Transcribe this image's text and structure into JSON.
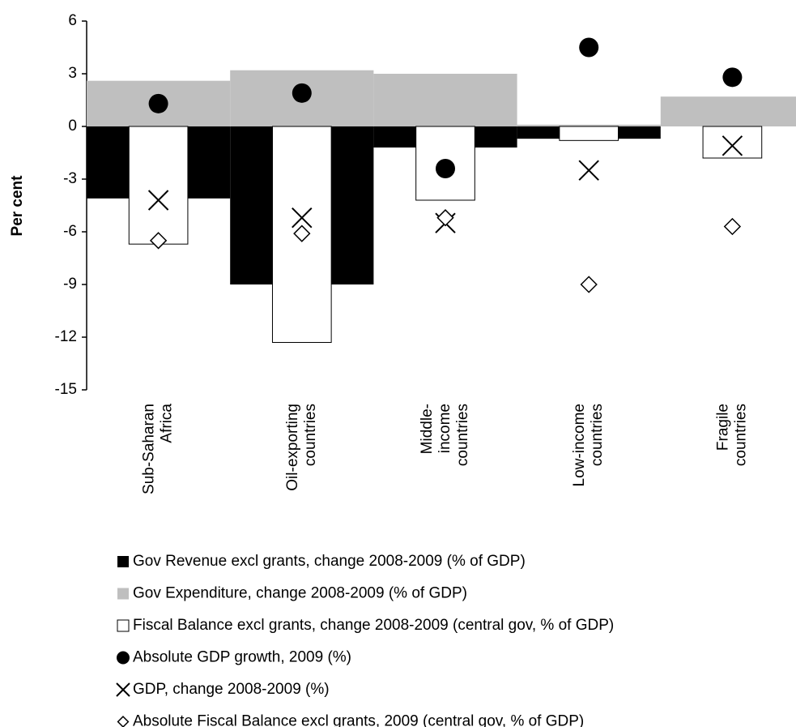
{
  "chart_data": {
    "type": "bar",
    "ylabel": "Per cent",
    "categories": [
      [
        "Sub-Saharan",
        "Africa"
      ],
      [
        "Oil-exporting",
        "countries"
      ],
      [
        "Middle-",
        "income",
        "countries"
      ],
      [
        "Low-income",
        "countries"
      ],
      [
        "Fragile",
        "countries"
      ]
    ],
    "ylim": [
      -15,
      6
    ],
    "yticks": [
      6,
      3,
      0,
      -3,
      -6,
      -9,
      -12,
      -15
    ],
    "series": [
      {
        "name": "Gov Revenue excl grants, change 2008-2009 (% of GDP)",
        "type": "bar",
        "color": "#000000",
        "values": [
          -4.1,
          -9.0,
          -1.2,
          -0.7,
          0
        ]
      },
      {
        "name": "Gov Expenditure, change 2008-2009 (% of GDP)",
        "type": "bar",
        "color": "#bfbfbf",
        "values": [
          2.6,
          3.2,
          3.0,
          0.1,
          1.7
        ]
      },
      {
        "name": "Fiscal Balance excl grants, change 2008-2009 (central gov, % of GDP)",
        "type": "bar",
        "color": "#ffffff",
        "values": [
          -6.7,
          -12.3,
          -4.2,
          -0.8,
          -1.8
        ]
      },
      {
        "name": "Absolute GDP growth, 2009 (%)",
        "type": "scatter",
        "marker": "circle",
        "color": "#000000",
        "values": [
          1.3,
          1.9,
          -2.4,
          4.5,
          2.8
        ]
      },
      {
        "name": "GDP, change 2008-2009 (%)",
        "type": "scatter",
        "marker": "x",
        "color": "#000000",
        "values": [
          -4.2,
          -5.2,
          -5.5,
          -2.5,
          -1.1
        ]
      },
      {
        "name": "Absolute Fiscal Balance excl grants, 2009 (central gov, % of GDP)",
        "type": "scatter",
        "marker": "diamond",
        "color": "#000000",
        "values": [
          -6.5,
          -6.1,
          -5.2,
          -9.0,
          -5.7
        ]
      }
    ]
  }
}
